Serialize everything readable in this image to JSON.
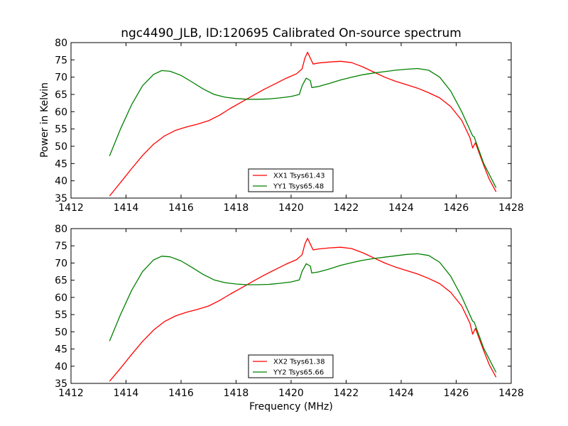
{
  "title": "ngc4490_JLB, ID:120695 Calibrated On-source spectrum",
  "xlabel": "Frequency (MHz)",
  "ylabel": "Power in Kelvin",
  "chart_data": [
    {
      "type": "line",
      "title": "ngc4490_JLB, ID:120695 Calibrated On-source spectrum",
      "xlabel": "",
      "ylabel": "Power in Kelvin",
      "xlim": [
        1412,
        1428
      ],
      "ylim": [
        35,
        80
      ],
      "xticks": [
        "1412",
        "1414",
        "1416",
        "1418",
        "1420",
        "1422",
        "1424",
        "1426",
        "1428"
      ],
      "yticks": [
        "35",
        "40",
        "45",
        "50",
        "55",
        "60",
        "65",
        "70",
        "75",
        "80"
      ],
      "grid": false,
      "legend_position": "lower-center",
      "series": [
        {
          "name": "XX1 Tsys61.43",
          "color": "#ff0000",
          "points": [
            [
              1413.4,
              35.6
            ],
            [
              1413.8,
              39.5
            ],
            [
              1414.2,
              43.5
            ],
            [
              1414.6,
              47.3
            ],
            [
              1415.0,
              50.6
            ],
            [
              1415.4,
              53.0
            ],
            [
              1415.8,
              54.6
            ],
            [
              1416.2,
              55.6
            ],
            [
              1416.6,
              56.4
            ],
            [
              1417.0,
              57.4
            ],
            [
              1417.4,
              59.0
            ],
            [
              1417.8,
              61.0
            ],
            [
              1418.2,
              62.8
            ],
            [
              1418.6,
              64.6
            ],
            [
              1419.0,
              66.4
            ],
            [
              1419.4,
              68.0
            ],
            [
              1419.8,
              69.6
            ],
            [
              1420.2,
              71.0
            ],
            [
              1420.4,
              72.4
            ],
            [
              1420.5,
              75.5
            ],
            [
              1420.6,
              77.2
            ],
            [
              1420.7,
              75.5
            ],
            [
              1420.8,
              73.8
            ],
            [
              1421.0,
              74.1
            ],
            [
              1421.4,
              74.4
            ],
            [
              1421.8,
              74.6
            ],
            [
              1422.2,
              74.2
            ],
            [
              1422.6,
              73.0
            ],
            [
              1423.0,
              71.5
            ],
            [
              1423.4,
              70.0
            ],
            [
              1423.8,
              68.8
            ],
            [
              1424.2,
              67.8
            ],
            [
              1424.6,
              66.8
            ],
            [
              1425.0,
              65.5
            ],
            [
              1425.4,
              64.0
            ],
            [
              1425.8,
              61.5
            ],
            [
              1426.2,
              57.5
            ],
            [
              1426.5,
              52.5
            ],
            [
              1426.6,
              49.5
            ],
            [
              1426.7,
              51.0
            ],
            [
              1427.0,
              44.5
            ],
            [
              1427.2,
              40.5
            ],
            [
              1427.45,
              36.8
            ]
          ]
        },
        {
          "name": "YY1 Tsys65.48",
          "color": "#008000",
          "points": [
            [
              1413.4,
              47.2
            ],
            [
              1413.8,
              55.0
            ],
            [
              1414.2,
              62.0
            ],
            [
              1414.6,
              67.5
            ],
            [
              1415.0,
              70.8
            ],
            [
              1415.3,
              71.9
            ],
            [
              1415.6,
              71.7
            ],
            [
              1416.0,
              70.5
            ],
            [
              1416.4,
              68.6
            ],
            [
              1416.8,
              66.6
            ],
            [
              1417.2,
              65.0
            ],
            [
              1417.6,
              64.2
            ],
            [
              1418.0,
              63.8
            ],
            [
              1418.4,
              63.6
            ],
            [
              1418.8,
              63.6
            ],
            [
              1419.2,
              63.7
            ],
            [
              1419.6,
              64.0
            ],
            [
              1420.0,
              64.4
            ],
            [
              1420.3,
              65.0
            ],
            [
              1420.4,
              67.5
            ],
            [
              1420.55,
              69.7
            ],
            [
              1420.7,
              69.0
            ],
            [
              1420.75,
              67.0
            ],
            [
              1421.0,
              67.3
            ],
            [
              1421.4,
              68.2
            ],
            [
              1421.8,
              69.2
            ],
            [
              1422.2,
              70.0
            ],
            [
              1422.6,
              70.7
            ],
            [
              1423.0,
              71.2
            ],
            [
              1423.4,
              71.6
            ],
            [
              1423.8,
              72.0
            ],
            [
              1424.2,
              72.3
            ],
            [
              1424.6,
              72.5
            ],
            [
              1425.0,
              72.0
            ],
            [
              1425.4,
              70.0
            ],
            [
              1425.8,
              66.0
            ],
            [
              1426.2,
              60.0
            ],
            [
              1426.6,
              53.0
            ],
            [
              1426.65,
              52.8
            ],
            [
              1427.0,
              45.0
            ],
            [
              1427.45,
              38.0
            ]
          ]
        }
      ]
    },
    {
      "type": "line",
      "title": "",
      "xlabel": "Frequency (MHz)",
      "ylabel": "",
      "xlim": [
        1412,
        1428
      ],
      "ylim": [
        35,
        80
      ],
      "xticks": [
        "1412",
        "1414",
        "1416",
        "1418",
        "1420",
        "1422",
        "1424",
        "1426",
        "1428"
      ],
      "yticks": [
        "35",
        "40",
        "45",
        "50",
        "55",
        "60",
        "65",
        "70",
        "75",
        "80"
      ],
      "grid": false,
      "legend_position": "lower-center",
      "series": [
        {
          "name": "XX2 Tsys61.38",
          "color": "#ff0000",
          "points": [
            [
              1413.4,
              35.6
            ],
            [
              1413.8,
              39.4
            ],
            [
              1414.2,
              43.4
            ],
            [
              1414.6,
              47.2
            ],
            [
              1415.0,
              50.5
            ],
            [
              1415.4,
              53.0
            ],
            [
              1415.8,
              54.6
            ],
            [
              1416.2,
              55.7
            ],
            [
              1416.6,
              56.5
            ],
            [
              1417.0,
              57.5
            ],
            [
              1417.4,
              59.1
            ],
            [
              1417.8,
              61.0
            ],
            [
              1418.2,
              62.8
            ],
            [
              1418.6,
              64.6
            ],
            [
              1419.0,
              66.4
            ],
            [
              1419.4,
              68.0
            ],
            [
              1419.8,
              69.6
            ],
            [
              1420.2,
              71.0
            ],
            [
              1420.4,
              72.4
            ],
            [
              1420.5,
              75.5
            ],
            [
              1420.6,
              77.2
            ],
            [
              1420.7,
              75.5
            ],
            [
              1420.8,
              73.8
            ],
            [
              1421.0,
              74.1
            ],
            [
              1421.4,
              74.4
            ],
            [
              1421.8,
              74.6
            ],
            [
              1422.2,
              74.2
            ],
            [
              1422.6,
              73.0
            ],
            [
              1423.0,
              71.5
            ],
            [
              1423.4,
              70.0
            ],
            [
              1423.8,
              68.8
            ],
            [
              1424.2,
              67.8
            ],
            [
              1424.6,
              66.8
            ],
            [
              1425.0,
              65.5
            ],
            [
              1425.4,
              64.0
            ],
            [
              1425.8,
              61.5
            ],
            [
              1426.2,
              57.5
            ],
            [
              1426.5,
              52.5
            ],
            [
              1426.6,
              49.3
            ],
            [
              1426.7,
              51.0
            ],
            [
              1427.0,
              44.5
            ],
            [
              1427.2,
              40.5
            ],
            [
              1427.45,
              36.8
            ]
          ]
        },
        {
          "name": "YY2 Tsys65.66",
          "color": "#008000",
          "points": [
            [
              1413.4,
              47.3
            ],
            [
              1413.8,
              55.0
            ],
            [
              1414.2,
              62.0
            ],
            [
              1414.6,
              67.5
            ],
            [
              1415.0,
              70.9
            ],
            [
              1415.3,
              72.0
            ],
            [
              1415.6,
              71.8
            ],
            [
              1416.0,
              70.6
            ],
            [
              1416.4,
              68.7
            ],
            [
              1416.8,
              66.7
            ],
            [
              1417.2,
              65.1
            ],
            [
              1417.6,
              64.3
            ],
            [
              1418.0,
              63.9
            ],
            [
              1418.4,
              63.7
            ],
            [
              1418.8,
              63.7
            ],
            [
              1419.2,
              63.8
            ],
            [
              1419.6,
              64.1
            ],
            [
              1420.0,
              64.5
            ],
            [
              1420.3,
              65.1
            ],
            [
              1420.4,
              67.6
            ],
            [
              1420.55,
              69.8
            ],
            [
              1420.7,
              69.1
            ],
            [
              1420.75,
              67.1
            ],
            [
              1421.0,
              67.4
            ],
            [
              1421.4,
              68.3
            ],
            [
              1421.8,
              69.3
            ],
            [
              1422.2,
              70.1
            ],
            [
              1422.6,
              70.8
            ],
            [
              1423.0,
              71.3
            ],
            [
              1423.4,
              71.7
            ],
            [
              1423.8,
              72.1
            ],
            [
              1424.2,
              72.5
            ],
            [
              1424.6,
              72.7
            ],
            [
              1425.0,
              72.2
            ],
            [
              1425.4,
              70.2
            ],
            [
              1425.8,
              66.2
            ],
            [
              1426.2,
              60.2
            ],
            [
              1426.6,
              53.1
            ],
            [
              1426.65,
              52.9
            ],
            [
              1427.0,
              45.2
            ],
            [
              1427.45,
              38.2
            ]
          ]
        }
      ]
    }
  ]
}
